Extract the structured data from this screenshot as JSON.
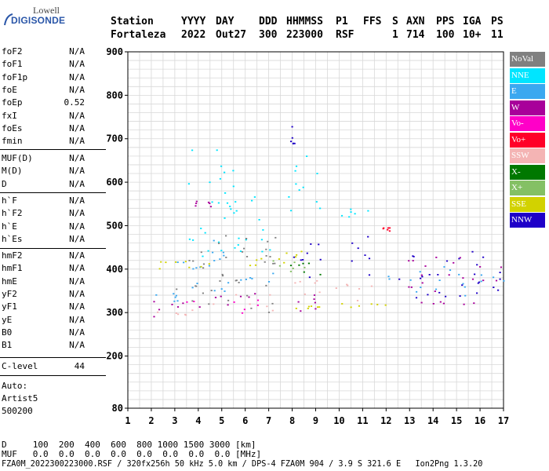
{
  "logo": {
    "line1": "Lowell",
    "line2": "DIGISONDE"
  },
  "header": {
    "labels": [
      "Station",
      "YYYY",
      "DAY",
      "DDD",
      "HHMMSS",
      "P1",
      "FFS",
      "S",
      "AXN",
      "PPS",
      "IGA",
      "PS"
    ],
    "values": [
      "Fortaleza",
      "2022",
      "Out27",
      "300",
      "223000",
      "RSF",
      "",
      "1",
      "714",
      "100",
      "10+",
      "11"
    ]
  },
  "params_group1": [
    {
      "name": "foF2",
      "value": "N/A"
    },
    {
      "name": "foF1",
      "value": "N/A"
    },
    {
      "name": "foF1p",
      "value": "N/A"
    },
    {
      "name": "foE",
      "value": "N/A"
    },
    {
      "name": "foEp",
      "value": "0.52"
    },
    {
      "name": "fxI",
      "value": "N/A"
    },
    {
      "name": "foEs",
      "value": "N/A"
    },
    {
      "name": "fmin",
      "value": "N/A"
    }
  ],
  "params_group2": [
    {
      "name": "MUF(D)",
      "value": "N/A"
    },
    {
      "name": "M(D)",
      "value": "N/A"
    },
    {
      "name": "D",
      "value": "N/A"
    }
  ],
  "params_group3": [
    {
      "name": "h`F",
      "value": "N/A"
    },
    {
      "name": "h`F2",
      "value": "N/A"
    },
    {
      "name": "h`E",
      "value": "N/A"
    },
    {
      "name": "h`Es",
      "value": "N/A"
    }
  ],
  "params_group4": [
    {
      "name": "hmF2",
      "value": "N/A"
    },
    {
      "name": "hmF1",
      "value": "N/A"
    },
    {
      "name": "hmE",
      "value": "N/A"
    },
    {
      "name": "yF2",
      "value": "N/A"
    },
    {
      "name": "yF1",
      "value": "N/A"
    },
    {
      "name": "yE",
      "value": "N/A"
    },
    {
      "name": "B0",
      "value": "N/A"
    },
    {
      "name": "B1",
      "value": "N/A"
    }
  ],
  "clevel": {
    "name": "C-level",
    "value": "44"
  },
  "auto": {
    "line1": "Auto:",
    "line2": "Artist5",
    "line3": "500200"
  },
  "legend": [
    {
      "label": "NoVal",
      "color": "#808080"
    },
    {
      "label": "NNE",
      "color": "#00e5ff"
    },
    {
      "label": "E",
      "color": "#3aa8f0"
    },
    {
      "label": "W",
      "color": "#a8009a"
    },
    {
      "label": "Vo-",
      "color": "#ff00c8"
    },
    {
      "label": "Vo+",
      "color": "#ff0028"
    },
    {
      "label": "SSW",
      "color": "#f4b4b4"
    },
    {
      "label": "X-",
      "color": "#007800"
    },
    {
      "label": "X+",
      "color": "#84c064"
    },
    {
      "label": "SSE",
      "color": "#d2d200"
    },
    {
      "label": "NNW",
      "color": "#1e00c8"
    }
  ],
  "footer": {
    "d_row": "D     100  200  400  600  800 1000 1500 3000 [km]",
    "muf_row": "MUF   0.0  0.0  0.0  0.0  0.0  0.0  0.0  0.0 [MHz]",
    "file_row": "FZA0M_2022300223000.RSF / 320fx256h 50 kHz 5.0 km / DPS-4 FZA0M 904 / 3.9 S 321.6 E   Ion2Png 1.3.20"
  },
  "chart_data": {
    "type": "scatter",
    "xlim": [
      1,
      17
    ],
    "ylim": [
      80,
      900
    ],
    "x_ticks": [
      "1",
      "2",
      "3",
      "4",
      "5",
      "6",
      "7",
      "8",
      "9",
      "10",
      "11",
      "12",
      "13",
      "14",
      "15",
      "16",
      "17"
    ],
    "y_ticks": [
      "80",
      "200",
      "300",
      "400",
      "500",
      "600",
      "700",
      "800",
      "900"
    ],
    "grid": true,
    "legend_position": "right",
    "series": [
      {
        "name": "E",
        "color": "#3aa8f0",
        "clusters": [
          {
            "x": [
              1.9,
              3.5
            ],
            "y": [
              320,
              345
            ]
          },
          {
            "x": [
              3.5,
              5.5
            ],
            "y": [
              345,
              375
            ]
          },
          {
            "x": [
              5.5,
              7.3
            ],
            "y": [
              368,
              395
            ]
          },
          {
            "x": [
              2.0,
              4.5
            ],
            "y": [
              400,
              420
            ]
          },
          {
            "x": [
              4.0,
              5.5
            ],
            "y": [
              420,
              470
            ]
          },
          {
            "x": [
              12.0,
              17.0
            ],
            "y": [
              340,
              410
            ]
          }
        ]
      },
      {
        "name": "W",
        "color": "#a8009a",
        "clusters": [
          {
            "x": [
              1.9,
              4.0
            ],
            "y": [
              280,
              330
            ]
          },
          {
            "x": [
              4.0,
              7.0
            ],
            "y": [
              300,
              345
            ]
          },
          {
            "x": [
              7.8,
              9.5
            ],
            "y": [
              305,
              345
            ]
          },
          {
            "x": [
              13.0,
              17.0
            ],
            "y": [
              318,
              330
            ]
          },
          {
            "x": [
              12.5,
              17.0
            ],
            "y": [
              350,
              430
            ]
          },
          {
            "x": [
              3.5,
              4.8
            ],
            "y": [
              545,
              560
            ]
          }
        ]
      },
      {
        "name": "SSW",
        "color": "#f4b4b4",
        "clusters": [
          {
            "x": [
              1.9,
              4.5
            ],
            "y": [
              285,
              320
            ]
          },
          {
            "x": [
              4.5,
              7.2
            ],
            "y": [
              305,
              345
            ]
          },
          {
            "x": [
              7.8,
              9.5
            ],
            "y": [
              325,
              375
            ]
          },
          {
            "x": [
              9.8,
              11.5
            ],
            "y": [
              325,
              375
            ]
          }
        ]
      },
      {
        "name": "SSE",
        "color": "#d2d200",
        "clusters": [
          {
            "x": [
              1.9,
              4.0
            ],
            "y": [
              400,
              420
            ]
          },
          {
            "x": [
              3.5,
              7.3
            ],
            "y": [
              405,
              430
            ]
          },
          {
            "x": [
              7.3,
              9.0
            ],
            "y": [
              415,
              445
            ]
          },
          {
            "x": [
              7.5,
              9.5
            ],
            "y": [
              310,
              320
            ]
          },
          {
            "x": [
              10.0,
              12.0
            ],
            "y": [
              312,
              322
            ]
          }
        ]
      },
      {
        "name": "NNE",
        "color": "#00e5ff",
        "clusters": [
          {
            "x": [
              3.5,
              5.5
            ],
            "y": [
              430,
              680
            ]
          },
          {
            "x": [
              5.5,
              7.3
            ],
            "y": [
              430,
              580
            ]
          },
          {
            "x": [
              7.8,
              9.3
            ],
            "y": [
              530,
              670
            ]
          },
          {
            "x": [
              10.0,
              11.3
            ],
            "y": [
              520,
              540
            ]
          }
        ]
      },
      {
        "name": "NNW",
        "color": "#1e00c8",
        "clusters": [
          {
            "x": [
              7.8,
              9.5
            ],
            "y": [
              380,
              470
            ]
          },
          {
            "x": [
              10.0,
              11.3
            ],
            "y": [
              375,
              480
            ]
          },
          {
            "x": [
              12.5,
              17.0
            ],
            "y": [
              335,
              450
            ]
          },
          {
            "x": [
              7.9,
              8.1
            ],
            "y": [
              690,
              730
            ]
          }
        ]
      },
      {
        "name": "X-",
        "color": "#007800",
        "clusters": [
          {
            "x": [
              7.8,
              9.3
            ],
            "y": [
              375,
              420
            ]
          }
        ]
      },
      {
        "name": "X+",
        "color": "#84c064",
        "clusters": [
          {
            "x": [
              6.8,
              8.8
            ],
            "y": [
              395,
              440
            ]
          }
        ]
      },
      {
        "name": "Vo+",
        "color": "#ff0028",
        "clusters": [
          {
            "x": [
              11.8,
              12.2
            ],
            "y": [
              488,
              498
            ]
          }
        ]
      },
      {
        "name": "Vo-",
        "color": "#ff00c8",
        "clusters": [
          {
            "x": [
              2.5,
              7.0
            ],
            "y": [
              300,
              330
            ]
          }
        ]
      },
      {
        "name": "NoVal",
        "color": "#808080",
        "clusters": [
          {
            "x": [
              3.0,
              7.3
            ],
            "y": [
              300,
              480
            ]
          }
        ]
      }
    ]
  }
}
